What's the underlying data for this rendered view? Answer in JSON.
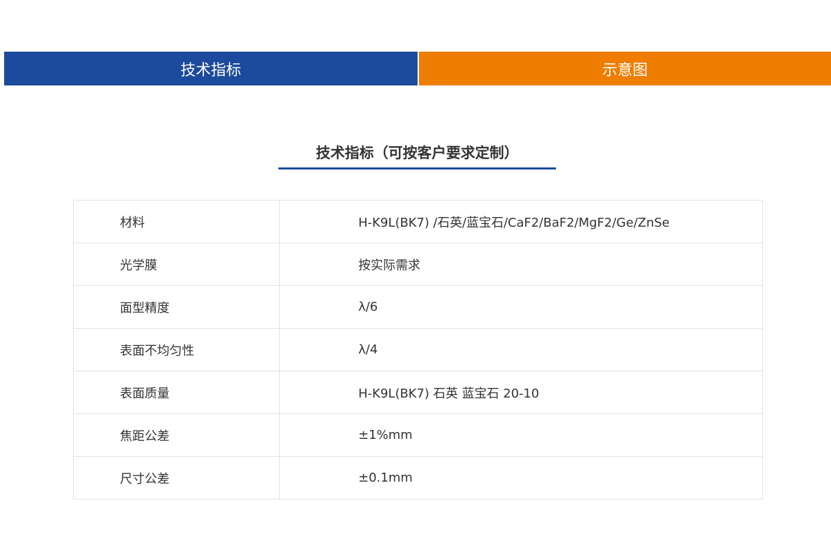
{
  "tabs": [
    {
      "label": "技术指标",
      "color": "#1c4a9c",
      "active": true
    },
    {
      "label": "示意图",
      "color": "#ef7d00",
      "active": false
    }
  ],
  "section": {
    "title": "技术指标（可按客户要求定制）",
    "accent": "#1c4a9c"
  },
  "specs": [
    {
      "key": "材料",
      "value": "H-K9L(BK7) /石英/蓝宝石/CaF2/BaF2/MgF2/Ge/ZnSe"
    },
    {
      "key": "光学膜",
      "value": "按实际需求"
    },
    {
      "key": "面型精度",
      "value": "λ/6"
    },
    {
      "key": "表面不均匀性",
      "value": "λ/4"
    },
    {
      "key": "表面质量",
      "value": "H-K9L(BK7) 石英 蓝宝石 20-10"
    },
    {
      "key": "焦距公差",
      "value": "±1%mm"
    },
    {
      "key": "尺寸公差",
      "value": "±0.1mm"
    }
  ]
}
